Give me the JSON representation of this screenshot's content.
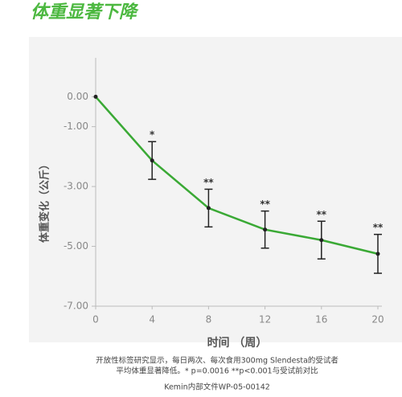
{
  "chart_data": {
    "type": "line",
    "title": "体重显著下降",
    "x": [
      0,
      4,
      8,
      12,
      16,
      20
    ],
    "values": [
      0,
      -2.13,
      -3.72,
      -4.44,
      -4.79,
      -5.25
    ],
    "errors": [
      0,
      0.63,
      0.63,
      0.62,
      0.63,
      0.65
    ],
    "significance": [
      null,
      "*",
      "**",
      "**",
      "**",
      "**"
    ],
    "color": "#3aa935",
    "xlim": [
      0,
      20
    ],
    "xticks": [
      0,
      4,
      8,
      12,
      16,
      20
    ],
    "ylim": [
      -7,
      1.3
    ],
    "yticks": [
      {
        "value": 0,
        "label": "0.00"
      },
      {
        "value": -1,
        "label": "-1.00"
      },
      {
        "value": -3,
        "label": "-3.00"
      },
      {
        "value": -5,
        "label": "-5.00"
      },
      {
        "value": -7,
        "label": "-7.00"
      }
    ],
    "xlabel": "时间 （周）",
    "ylabel": "体重变化（公斤）",
    "footnote": [
      "开放性标签研究显示，每日两次、每次食用300mg Slendesta的受试者",
      "平均体重显著降低。* p=0.0016 **p<0.001与受试前对比"
    ],
    "source": "Kemin内部文件WP-05-00142"
  }
}
